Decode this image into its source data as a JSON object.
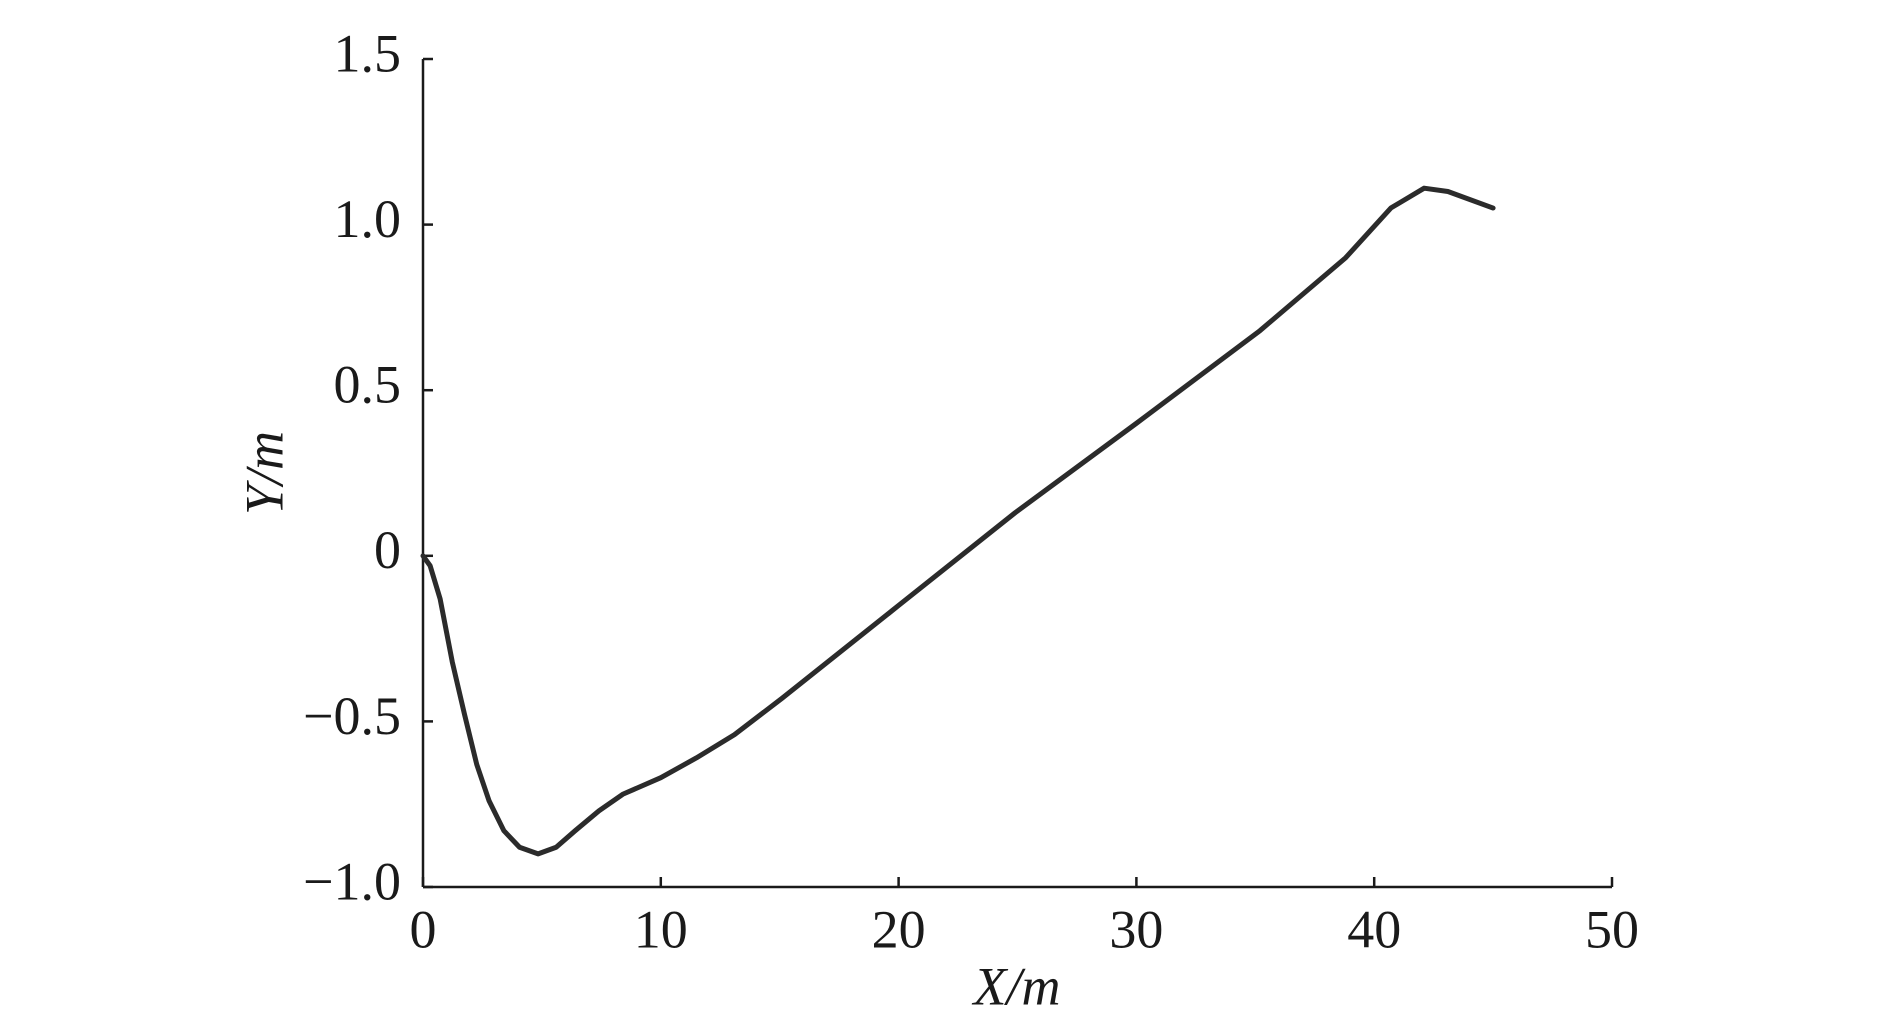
{
  "chart_data": {
    "type": "line",
    "x_label": "X/m",
    "y_label": "Y/m",
    "x": [
      0,
      0.3,
      0.72,
      1.23,
      1.75,
      2.26,
      2.78,
      3.4,
      4.06,
      4.84,
      5.6,
      6.4,
      7.4,
      8.4,
      10,
      11.5,
      13.1,
      15.1,
      20,
      24.9,
      30,
      35.2,
      38.8,
      40.7,
      42.1,
      43.1,
      45
    ],
    "series": [
      {
        "color": "#2b2b2b",
        "values": [
          0,
          -0.03,
          -0.13,
          -0.32,
          -0.48,
          -0.63,
          -0.74,
          -0.83,
          -0.88,
          -0.9,
          -0.88,
          -0.83,
          -0.77,
          -0.72,
          -0.67,
          -0.61,
          -0.54,
          -0.43,
          -0.15,
          0.13,
          0.4,
          0.68,
          0.9,
          1.05,
          1.11,
          1.1,
          1.05
        ]
      }
    ],
    "xlim": [
      0,
      50
    ],
    "xticks": [
      0,
      10,
      20,
      30,
      40,
      50
    ],
    "ylim": [
      -1.0,
      1.5
    ],
    "yticks": [
      {
        "value": -1.0,
        "label": "−1.0"
      },
      {
        "value": -0.5,
        "label": "−0.5"
      },
      0,
      0.5,
      {
        "value": 1.0,
        "label": "1.0"
      },
      1.5
    ],
    "grid": false
  }
}
